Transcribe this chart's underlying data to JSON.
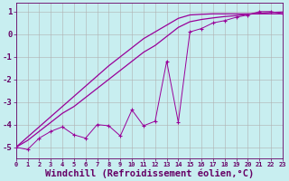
{
  "x_data": [
    0,
    1,
    2,
    3,
    4,
    5,
    6,
    7,
    8,
    9,
    10,
    11,
    12,
    13,
    14,
    15,
    16,
    17,
    18,
    19,
    20,
    21,
    22,
    23
  ],
  "y_actual": [
    -5.0,
    -5.1,
    -4.6,
    -4.3,
    -4.1,
    -4.45,
    -4.6,
    -4.0,
    -4.05,
    -4.5,
    -3.35,
    -4.05,
    -3.85,
    -1.2,
    -3.9,
    0.1,
    0.25,
    0.5,
    0.6,
    0.75,
    0.85,
    1.0,
    1.0,
    0.9
  ],
  "y_diag1": [
    -5.0,
    -4.7,
    -4.3,
    -3.9,
    -3.5,
    -3.2,
    -2.8,
    -2.4,
    -2.0,
    -1.6,
    -1.2,
    -0.8,
    -0.5,
    -0.1,
    0.3,
    0.55,
    0.65,
    0.72,
    0.78,
    0.82,
    0.88,
    0.92,
    0.96,
    0.98
  ],
  "y_diag2": [
    -5.0,
    -4.55,
    -4.1,
    -3.65,
    -3.2,
    -2.75,
    -2.3,
    -1.85,
    -1.4,
    -1.0,
    -0.6,
    -0.2,
    0.1,
    0.4,
    0.7,
    0.85,
    0.88,
    0.9,
    0.9,
    0.9,
    0.9,
    0.9,
    0.9,
    0.9
  ],
  "x_tick_labels": [
    "0",
    "1",
    "2",
    "3",
    "4",
    "5",
    "6",
    "7",
    "8",
    "9",
    "10",
    "11",
    "12",
    "13",
    "14",
    "15",
    "16",
    "17",
    "18",
    "19",
    "20",
    "21",
    "22",
    "23"
  ],
  "y_ticks": [
    -5,
    -4,
    -3,
    -2,
    -1,
    0,
    1
  ],
  "xlim": [
    0,
    23
  ],
  "ylim": [
    -5.5,
    1.4
  ],
  "xlabel": "Windchill (Refroidissement éolien,°C)",
  "line_color": "#990099",
  "bg_color": "#c8eef0",
  "grid_color": "#b0b0b0",
  "font_color": "#660066",
  "tick_fontsize": 6.5,
  "xlabel_fontsize": 7.5
}
